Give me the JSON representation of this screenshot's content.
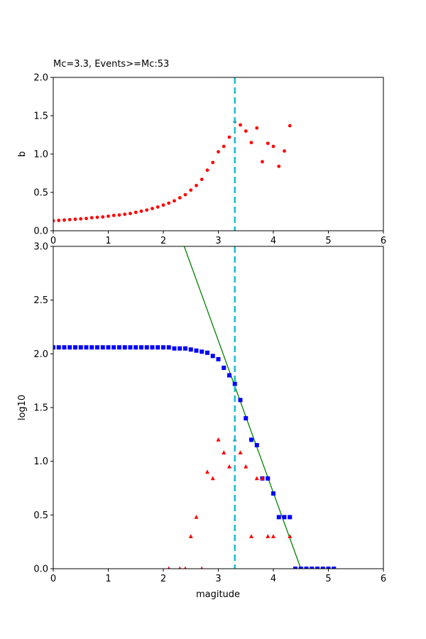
{
  "chart_data": [
    {
      "type": "scatter",
      "title": "Mc=3.3, Events>=Mc:53",
      "xlabel": "",
      "ylabel": "b",
      "xlim": [
        0,
        6
      ],
      "ylim": [
        0,
        2.0
      ],
      "xticks": [
        "0",
        "1",
        "2",
        "3",
        "4",
        "5",
        "6"
      ],
      "yticks": [
        "0.0",
        "0.5",
        "1.0",
        "1.5",
        "2.0"
      ],
      "mc_line": 3.3,
      "grid": false,
      "colors": {
        "points": "#ff0000",
        "mc_line": "#17becf",
        "mc_point": "#808080"
      },
      "series": [
        {
          "marker": "circle",
          "x": [
            0,
            0.1,
            0.2,
            0.3,
            0.4,
            0.5,
            0.6,
            0.7,
            0.8,
            0.9,
            1.0,
            1.1,
            1.2,
            1.3,
            1.4,
            1.5,
            1.6,
            1.7,
            1.8,
            1.9,
            2.0,
            2.1,
            2.2,
            2.3,
            2.4,
            2.5,
            2.6,
            2.7,
            2.8,
            2.9,
            3.0,
            3.1,
            3.2,
            3.4,
            3.5,
            3.6,
            3.7,
            3.8,
            3.9,
            4.0,
            4.1,
            4.2,
            4.3
          ],
          "y": [
            0.13,
            0.135,
            0.14,
            0.145,
            0.15,
            0.155,
            0.16,
            0.17,
            0.175,
            0.18,
            0.19,
            0.2,
            0.205,
            0.215,
            0.225,
            0.24,
            0.255,
            0.27,
            0.29,
            0.31,
            0.335,
            0.36,
            0.39,
            0.43,
            0.47,
            0.53,
            0.59,
            0.67,
            0.79,
            0.89,
            1.03,
            1.1,
            1.22,
            1.38,
            1.3,
            1.15,
            1.34,
            0.9,
            1.14,
            1.1,
            0.84,
            1.04,
            1.37
          ]
        },
        {
          "marker": "circle",
          "x": [
            3.3
          ],
          "y": [
            1.42
          ]
        }
      ]
    },
    {
      "type": "scatter",
      "title": "",
      "xlabel": "magitude",
      "ylabel": "log10",
      "xlim": [
        0,
        6
      ],
      "ylim": [
        0,
        3.0
      ],
      "xticks": [
        "0",
        "1",
        "2",
        "3",
        "4",
        "5",
        "6"
      ],
      "yticks": [
        "0.0",
        "0.5",
        "1.0",
        "1.5",
        "2.0",
        "2.5",
        "3.0"
      ],
      "mc_line": 3.3,
      "grid": false,
      "colors": {
        "cumulative": "#0000ff",
        "noncumulative": "#ff0000",
        "fit_line": "#008000",
        "mc_line": "#17becf",
        "mc_point": "#808080"
      },
      "fit_line": {
        "x": [
          2.38,
          4.5
        ],
        "y": [
          3.0,
          0.0
        ]
      },
      "series": [
        {
          "marker": "square",
          "x": [
            0,
            0.1,
            0.2,
            0.3,
            0.4,
            0.5,
            0.6,
            0.7,
            0.8,
            0.9,
            1.0,
            1.1,
            1.2,
            1.3,
            1.4,
            1.5,
            1.6,
            1.7,
            1.8,
            1.9,
            2.0,
            2.1,
            2.2,
            2.3,
            2.4,
            2.5,
            2.6,
            2.7,
            2.8,
            2.9,
            3.0,
            3.1,
            3.2,
            3.3,
            3.4,
            3.5,
            3.6,
            3.7,
            3.8,
            3.9,
            4.0,
            4.1,
            4.2,
            4.3,
            4.4,
            4.5,
            4.6,
            4.7,
            4.8,
            4.9,
            5.0,
            5.1
          ],
          "y": [
            2.06,
            2.06,
            2.06,
            2.06,
            2.06,
            2.06,
            2.06,
            2.06,
            2.06,
            2.06,
            2.06,
            2.06,
            2.06,
            2.06,
            2.06,
            2.06,
            2.06,
            2.06,
            2.06,
            2.06,
            2.06,
            2.06,
            2.05,
            2.05,
            2.05,
            2.04,
            2.03,
            2.02,
            2.01,
            1.98,
            1.95,
            1.87,
            1.8,
            1.72,
            1.57,
            1.4,
            1.2,
            1.15,
            0.84,
            0.84,
            0.7,
            0.48,
            0.48,
            0.48,
            0.0,
            0.0,
            0.0,
            0.0,
            0.0,
            0.0,
            0.0,
            0.0
          ]
        },
        {
          "marker": "triangle",
          "x": [
            2.1,
            2.3,
            2.4,
            2.5,
            2.6,
            2.7,
            2.8,
            2.9,
            3.0,
            3.1,
            3.2,
            3.4,
            3.5,
            3.6,
            3.7,
            3.8,
            3.9,
            4.0,
            4.3
          ],
          "y": [
            0.0,
            0.0,
            0.0,
            0.3,
            0.48,
            0.0,
            0.9,
            0.84,
            1.2,
            1.08,
            0.95,
            1.08,
            0.95,
            0.3,
            0.84,
            0.84,
            0.3,
            0.3,
            0.3
          ]
        },
        {
          "marker": "triangle",
          "x": [
            3.3
          ],
          "y": [
            1.2
          ]
        }
      ]
    }
  ]
}
